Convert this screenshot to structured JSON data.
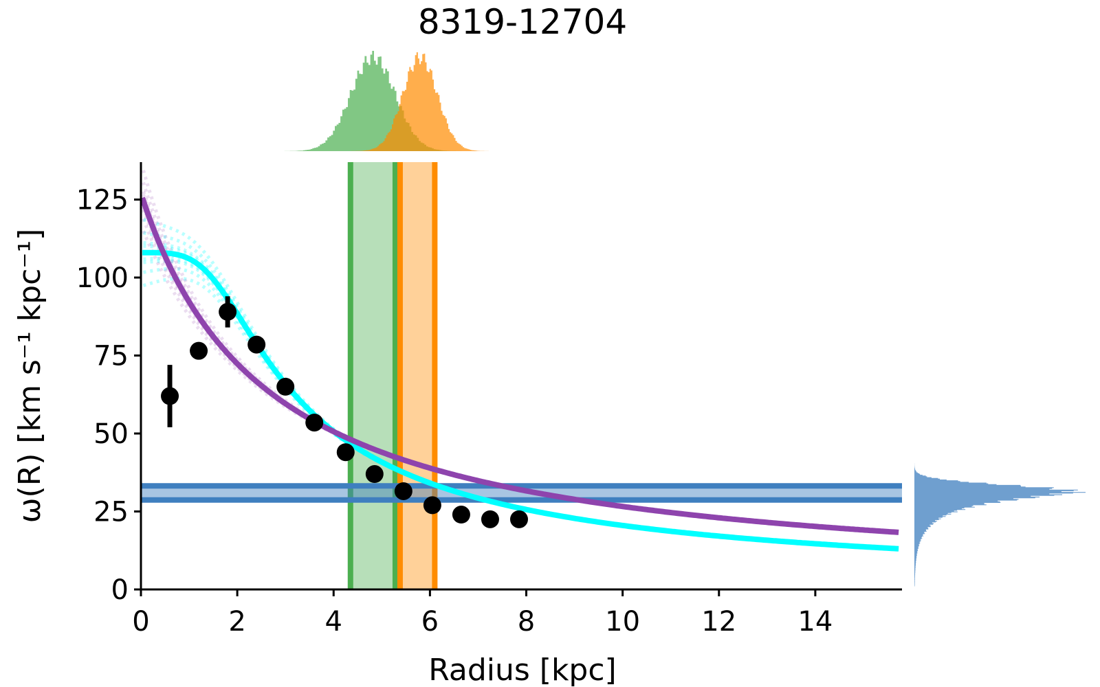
{
  "chart_data": {
    "type": "scatter",
    "title": "8319-12704",
    "xlabel": "Radius [kpc]",
    "ylabel": "ω(R) [km s⁻¹ kpc⁻¹]",
    "xlim": [
      0,
      15.8
    ],
    "ylim": [
      0,
      137
    ],
    "x_ticks": [
      0,
      2,
      4,
      6,
      8,
      10,
      12,
      14
    ],
    "y_ticks": [
      0,
      25,
      50,
      75,
      100,
      125
    ],
    "grid": false,
    "legend": "none",
    "observed": {
      "x": [
        0.6,
        1.2,
        1.8,
        2.4,
        3.0,
        3.6,
        4.25,
        4.85,
        5.45,
        6.05,
        6.65,
        7.25,
        7.85
      ],
      "y": [
        62,
        76.5,
        89,
        78.5,
        65,
        53.5,
        44,
        37,
        31.5,
        27,
        24,
        22.5,
        22.5
      ],
      "yerr": [
        10,
        0,
        5,
        0,
        0,
        0,
        0,
        0,
        0,
        0,
        0,
        0,
        0
      ]
    },
    "model_purple": {
      "peak": 127,
      "scale": 2.65
    },
    "model_cyan": {
      "peak": 108,
      "scale": 1.9,
      "n": 4
    },
    "corotation_green": {
      "median": 4.8,
      "low": 4.35,
      "high": 5.28
    },
    "corotation_orange": {
      "median": 5.78,
      "low": 5.38,
      "high": 6.1
    },
    "pattern_speed": {
      "median": 31,
      "low": 28.7,
      "high": 33.2
    },
    "colors": {
      "purple": "#8e44ad",
      "cyan": "#00ffff",
      "green": "#4caf50",
      "orange": "#ff8c00",
      "blue": "#3f7fbf",
      "points": "#000000"
    }
  }
}
